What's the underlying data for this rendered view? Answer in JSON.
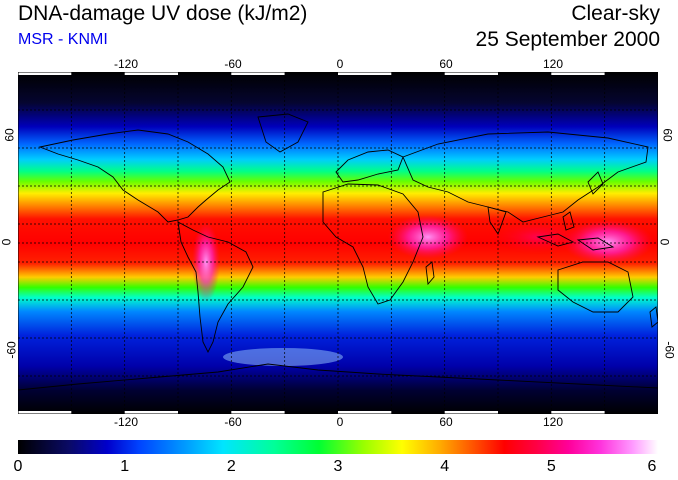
{
  "header": {
    "title": "DNA-damage UV dose (kJ/m2)",
    "subtitle": "MSR - KNMI",
    "sky_condition": "Clear-sky",
    "date": "25 September 2000"
  },
  "map": {
    "longitude_ticks": [
      "-120",
      "-60",
      "0",
      "60",
      "120"
    ],
    "latitude_ticks": [
      "60",
      "0",
      "-60"
    ],
    "longitude_values": [
      -120,
      -60,
      0,
      60,
      120
    ],
    "latitude_values": [
      60,
      0,
      -60
    ],
    "grid_lines": true,
    "projection": "equirectangular"
  },
  "colorbar": {
    "labels": [
      "0",
      "1",
      "2",
      "3",
      "4",
      "5",
      "6"
    ],
    "min": 0,
    "max": 6
  },
  "colors": {
    "subtitle": "#0000ee",
    "polar": "#000000",
    "mid": "#0033ff",
    "tropics": "#ff0000",
    "peak": "#ff33dd"
  }
}
